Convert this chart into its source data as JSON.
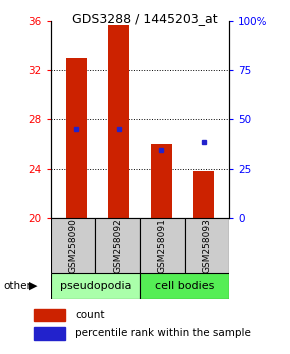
{
  "title": "GDS3288 / 1445203_at",
  "samples": [
    "GSM258090",
    "GSM258092",
    "GSM258091",
    "GSM258093"
  ],
  "bar_bottom": 20,
  "bar_tops": [
    33.0,
    35.7,
    26.0,
    23.8
  ],
  "blue_dots": [
    27.2,
    27.2,
    25.5,
    26.2
  ],
  "ylim_left": [
    20,
    36
  ],
  "ylim_right": [
    0,
    100
  ],
  "yticks_left": [
    20,
    24,
    28,
    32,
    36
  ],
  "yticks_right": [
    0,
    25,
    50,
    75,
    100
  ],
  "ytick_labels_right": [
    "0",
    "25",
    "50",
    "75",
    "100%"
  ],
  "grid_ticks": [
    24,
    28,
    32
  ],
  "bar_color": "#cc2200",
  "dot_color": "#2222cc",
  "bar_width": 0.5,
  "legend_count_label": "count",
  "legend_pct_label": "percentile rank within the sample",
  "other_label": "other",
  "pseudo_color": "#aaffaa",
  "cell_color": "#55ee55",
  "label_bg_color": "#cccccc",
  "fig_bg": "#ffffff",
  "title_fontsize": 9,
  "tick_fontsize": 7.5,
  "legend_fontsize": 7.5,
  "group_fontsize": 8
}
